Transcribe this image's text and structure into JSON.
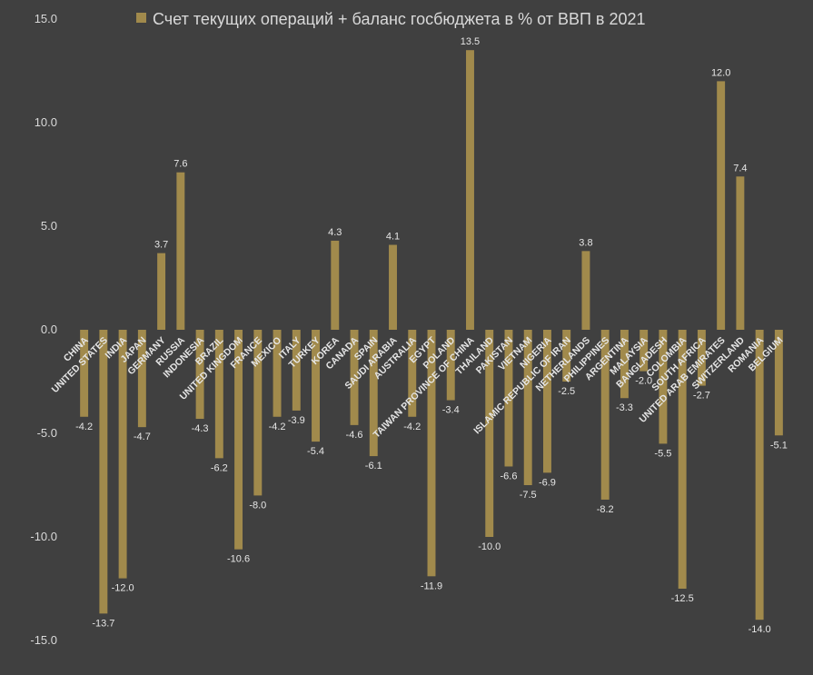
{
  "chart_data": {
    "type": "bar",
    "title": "",
    "xlabel": "",
    "ylabel": "",
    "ylim": [
      -15,
      15
    ],
    "yticks": [
      "-15.0",
      "-10.0",
      "-5.0",
      "0.0",
      "5.0",
      "10.0",
      "15.0"
    ],
    "ytick_values": [
      -15,
      -10,
      -5,
      0,
      5,
      10,
      15
    ],
    "legend_position": "top",
    "grid": false,
    "bar_color": "#a18a4c",
    "series": [
      {
        "name": "Счет текущих операций + баланс госбюджета в % от ВВП в 2021",
        "values": [
          -4.2,
          -13.7,
          -12.0,
          -4.7,
          3.7,
          7.6,
          -4.3,
          -6.2,
          -10.6,
          -8.0,
          -4.2,
          -3.9,
          -5.4,
          4.3,
          -4.6,
          -6.1,
          4.1,
          -4.2,
          -11.9,
          -3.4,
          13.5,
          -10.0,
          -6.6,
          -7.5,
          -6.9,
          -2.5,
          3.8,
          -8.2,
          -3.3,
          -2.0,
          -5.5,
          -12.5,
          -2.7,
          12.0,
          7.4,
          -14.0,
          -5.1
        ],
        "labels": [
          "-4.2",
          "-13.7",
          "-12.0",
          "-4.7",
          "3.7",
          "7.6",
          "-4.3",
          "-6.2",
          "-10.6",
          "-8.0",
          "-4.2",
          "-3.9",
          "-5.4",
          "4.3",
          "-4.6",
          "-6.1",
          "4.1",
          "-4.2",
          "-11.9",
          "-3.4",
          "13.5",
          "-10.0",
          "-6.6",
          "-7.5",
          "-6.9",
          "-2.5",
          "3.8",
          "-8.2",
          "-3.3",
          "-2.0",
          "-5.5",
          "-12.5",
          "-2.7",
          "12.0",
          "7.4",
          "-14.0",
          "-5.1"
        ]
      }
    ],
    "categories": [
      "CHINA",
      "UNITED STATES",
      "INDIA",
      "JAPAN",
      "GERMANY",
      "RUSSIA",
      "INDONESIA",
      "BRAZIL",
      "UNITED KINGDOM",
      "FRANCE",
      "MEXICO",
      "ITALY",
      "TURKEY",
      "KOREA",
      "CANADA",
      "SPAIN",
      "SAUDI ARABIA",
      "AUSTRALIA",
      "EGYPT",
      "POLAND",
      "TAIWAN PROVINCE OF CHINA",
      "THAILAND",
      "PAKISTAN",
      "VIETNAM",
      "NIGERIA",
      "ISLAMIC REPUBLIC OF IRAN",
      "NETHERLANDS",
      "PHILIPPINES",
      "ARGENTINA",
      "MALAYSIA",
      "BANGLADESH",
      "COLOMBIA",
      "SOUTH AFRICA",
      "UNITED ARAB EMIRATES",
      "SWITZERLAND",
      "ROMANIA",
      "BELGIUM"
    ]
  }
}
